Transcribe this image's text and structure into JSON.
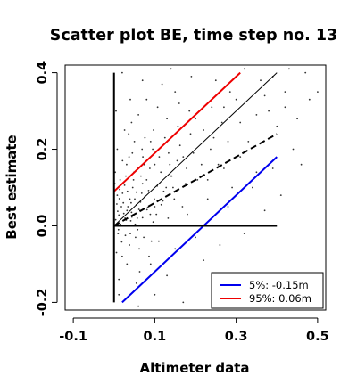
{
  "chart_data": {
    "type": "scatter",
    "title": "Scatter plot BE, time step no. 13",
    "xlabel": "Altimeter data",
    "ylabel": "Best estimate",
    "xlim": [
      -0.12,
      0.52
    ],
    "ylim": [
      -0.22,
      0.42
    ],
    "xticks": [
      -0.1,
      0.1,
      0.3,
      0.5
    ],
    "xtick_labels": [
      "-0.1",
      "0.1",
      "0.3",
      "0.5"
    ],
    "yticks": [
      -0.2,
      0.0,
      0.2,
      0.4
    ],
    "ytick_labels": [
      "-0.2",
      "0.0",
      "0.2",
      "0.4"
    ],
    "grid": false,
    "legend_position": "bottom-right",
    "point_color": "#333333",
    "lines": [
      {
        "name": "5%: -0.15m",
        "legend": true,
        "color": "#0000ee",
        "style": "solid",
        "x": [
          0.02,
          0.4
        ],
        "y": [
          -0.2,
          0.18
        ]
      },
      {
        "name": "95%:  0.06m",
        "legend": true,
        "color": "#ee0000",
        "style": "solid",
        "x": [
          0.0,
          0.31
        ],
        "y": [
          0.09,
          0.4
        ]
      },
      {
        "color": "#000000",
        "style": "solid",
        "x": [
          0.0,
          0.4
        ],
        "y": [
          0.0,
          0.4
        ]
      },
      {
        "color": "#000000",
        "style": "dashed",
        "x": [
          0.0,
          0.4
        ],
        "y": [
          0.0,
          0.24
        ]
      },
      {
        "color": "#000000",
        "style": "solid",
        "x": [
          0.0,
          0.4
        ],
        "y": [
          0.0,
          0.0
        ]
      },
      {
        "color": "#000000",
        "style": "solid",
        "x": [
          0.0,
          0.0
        ],
        "y": [
          -0.2,
          0.4
        ]
      }
    ],
    "points": [
      [
        0.004,
        0.016
      ],
      [
        0.03,
        0.015
      ],
      [
        0.046,
        0.027
      ],
      [
        0.032,
        0.04
      ],
      [
        0.041,
        0.013
      ],
      [
        0.007,
        0.057
      ],
      [
        0.07,
        0.021
      ],
      [
        0.028,
        -0.025
      ],
      [
        0.065,
        0.062
      ],
      [
        0.089,
        0.03
      ],
      [
        0.021,
        0.085
      ],
      [
        0.058,
        -0.01
      ],
      [
        0.034,
        0.05
      ],
      [
        0.12,
        0.065
      ],
      [
        0.016,
        0.004
      ],
      [
        0.055,
        0.088
      ],
      [
        0.106,
        0.104
      ],
      [
        0.01,
        -0.02
      ],
      [
        0.081,
        0.042
      ],
      [
        0.024,
        0.032
      ],
      [
        0.145,
        0.1
      ],
      [
        0.048,
        0.12
      ],
      [
        0.073,
        -0.03
      ],
      [
        0.013,
        0.071
      ],
      [
        0.099,
        0.07
      ],
      [
        0.038,
        -0.05
      ],
      [
        0.178,
        0.15
      ],
      [
        0.066,
        0.13
      ],
      [
        0.026,
        0.106
      ],
      [
        0.052,
        0.004
      ],
      [
        0.133,
        0.02
      ],
      [
        0.009,
        0.038
      ],
      [
        0.085,
        0.092
      ],
      [
        0.115,
        0.14
      ],
      [
        0.039,
        0.07
      ],
      [
        0.019,
        -0.042
      ],
      [
        0.205,
        0.12
      ],
      [
        0.061,
        0.043
      ],
      [
        0.096,
        0.01
      ],
      [
        0.031,
        0.16
      ],
      [
        0.155,
        0.17
      ],
      [
        0.002,
        0.11
      ],
      [
        0.075,
        0.075
      ],
      [
        0.044,
        0.023
      ],
      [
        0.128,
        0.1
      ],
      [
        0.012,
        0.028
      ],
      [
        0.092,
        -0.04
      ],
      [
        0.237,
        0.2
      ],
      [
        0.055,
        0.055
      ],
      [
        0.023,
        0.06
      ],
      [
        0.168,
        0.05
      ],
      [
        0.07,
        0.11
      ],
      [
        0.035,
        0.0
      ],
      [
        0.111,
        0.18
      ],
      [
        0.006,
        -0.07
      ],
      [
        0.049,
        0.14
      ],
      [
        0.083,
        0.048
      ],
      [
        0.28,
        0.22
      ],
      [
        0.027,
        0.02
      ],
      [
        0.14,
        0.13
      ],
      [
        0.062,
        -0.06
      ],
      [
        0.015,
        0.12
      ],
      [
        0.1,
        0.16
      ],
      [
        0.043,
        0.035
      ],
      [
        0.195,
        0.19
      ],
      [
        0.078,
        0.0
      ],
      [
        0.033,
        0.09
      ],
      [
        0.3,
        0.33
      ],
      [
        0.122,
        0.09
      ],
      [
        0.057,
        0.02
      ],
      [
        0.018,
        0.05
      ],
      [
        0.088,
        0.15
      ],
      [
        0.256,
        0.16
      ],
      [
        0.04,
        -0.02
      ],
      [
        0.162,
        0.21
      ],
      [
        0.068,
        0.085
      ],
      [
        0.011,
        -0.01
      ],
      [
        0.104,
        0.03
      ],
      [
        0.029,
        0.13
      ],
      [
        0.137,
        0.16
      ],
      [
        0.051,
        0.07
      ],
      [
        0.22,
        0.25
      ],
      [
        0.08,
        0.12
      ],
      [
        0.024,
        0.0
      ],
      [
        0.35,
        0.29
      ],
      [
        0.095,
        0.2
      ],
      [
        0.046,
        0.1
      ],
      [
        0.008,
        0.08
      ],
      [
        0.148,
        0.07
      ],
      [
        0.064,
        0.04
      ],
      [
        0.188,
        0.24
      ],
      [
        0.037,
        0.18
      ],
      [
        0.112,
        0.11
      ],
      [
        0.42,
        0.35
      ],
      [
        0.02,
        -0.08
      ],
      [
        0.074,
        0.16
      ],
      [
        0.265,
        0.27
      ],
      [
        0.053,
        -0.03
      ],
      [
        0.134,
        0.19
      ],
      [
        0.003,
        0.14
      ],
      [
        0.09,
        0.22
      ],
      [
        0.31,
        0.18
      ],
      [
        0.042,
        0.06
      ],
      [
        0.176,
        0.11
      ],
      [
        0.069,
        0.2
      ],
      [
        0.125,
        0.23
      ],
      [
        0.014,
        0.095
      ],
      [
        0.23,
        0.12
      ],
      [
        0.059,
        0.15
      ],
      [
        0.38,
        0.3
      ],
      [
        0.1,
        0.05
      ],
      [
        0.032,
        -0.1
      ],
      [
        0.157,
        0.26
      ],
      [
        0.086,
        -0.08
      ],
      [
        0.045,
        0.19
      ],
      [
        0.47,
        0.4
      ],
      [
        0.021,
        0.17
      ],
      [
        0.2,
        0.28
      ],
      [
        0.076,
        0.23
      ],
      [
        0.116,
        0.055
      ],
      [
        0.27,
        0.31
      ],
      [
        0.05,
        0.22
      ],
      [
        0.142,
        0.13
      ],
      [
        0.33,
        0.22
      ],
      [
        0.063,
        -0.12
      ],
      [
        0.008,
        0.2
      ],
      [
        0.17,
        0.18
      ],
      [
        0.097,
        0.25
      ],
      [
        0.245,
        0.23
      ],
      [
        0.036,
        0.24
      ],
      [
        0.4,
        0.26
      ],
      [
        0.13,
        0.28
      ],
      [
        0.012,
        -0.14
      ],
      [
        0.185,
        0.3
      ],
      [
        0.071,
        0.18
      ],
      [
        0.285,
        0.35
      ],
      [
        0.043,
        0.27
      ],
      [
        0.107,
        0.31
      ],
      [
        0.45,
        0.28
      ],
      [
        0.026,
        0.25
      ],
      [
        0.215,
        0.16
      ],
      [
        0.06,
        0.29
      ],
      [
        0.36,
        0.38
      ],
      [
        0.15,
        0.35
      ],
      [
        0.005,
        0.3
      ],
      [
        0.08,
        0.33
      ],
      [
        0.25,
        0.38
      ],
      [
        0.118,
        0.37
      ],
      [
        0.32,
        0.41
      ],
      [
        0.04,
        0.33
      ],
      [
        0.19,
        0.39
      ],
      [
        0.5,
        0.35
      ],
      [
        0.43,
        0.41
      ],
      [
        0.1,
        -0.18
      ],
      [
        0.055,
        -0.15
      ],
      [
        0.03,
        -0.19
      ],
      [
        0.15,
        -0.06
      ],
      [
        0.2,
        -0.03
      ],
      [
        0.24,
        0.02
      ],
      [
        0.28,
        0.05
      ],
      [
        0.34,
        0.1
      ],
      [
        0.39,
        0.15
      ],
      [
        0.44,
        0.2
      ],
      [
        0.48,
        0.33
      ],
      [
        0.17,
        -0.2
      ],
      [
        0.22,
        -0.09
      ],
      [
        0.26,
        -0.05
      ],
      [
        0.32,
        -0.02
      ],
      [
        0.37,
        0.04
      ],
      [
        0.41,
        0.08
      ],
      [
        0.13,
        -0.13
      ],
      [
        0.09,
        -0.1
      ],
      [
        0.012,
        -0.18
      ],
      [
        0.06,
        -0.21
      ],
      [
        0.46,
        0.16
      ],
      [
        0.35,
        0.14
      ],
      [
        0.29,
        0.1
      ],
      [
        0.23,
        0.07
      ],
      [
        0.18,
        0.03
      ],
      [
        0.11,
        -0.04
      ],
      [
        0.27,
        0.15
      ],
      [
        0.31,
        0.27
      ],
      [
        0.24,
        0.31
      ],
      [
        0.16,
        0.32
      ],
      [
        0.07,
        0.38
      ],
      [
        0.02,
        0.4
      ],
      [
        0.14,
        0.41
      ],
      [
        0.37,
        0.34
      ],
      [
        0.42,
        0.31
      ],
      [
        0.39,
        0.39
      ]
    ]
  }
}
